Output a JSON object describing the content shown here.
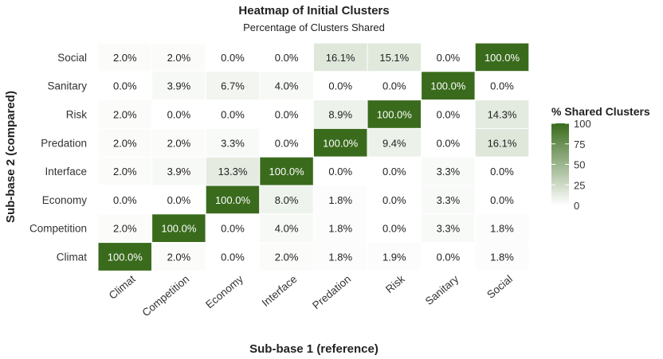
{
  "chart_data": {
    "type": "heatmap",
    "title": "Heatmap of Initial Clusters",
    "subtitle": "Percentage of Clusters Shared",
    "xlabel": "Sub-base 1 (reference)",
    "ylabel": "Sub-base 2 (compared)",
    "x_categories": [
      "Climat",
      "Competition",
      "Economy",
      "Interface",
      "Predation",
      "Risk",
      "Sanitary",
      "Social"
    ],
    "y_categories_top_to_bottom": [
      "Social",
      "Sanitary",
      "Risk",
      "Predation",
      "Interface",
      "Economy",
      "Competition",
      "Climat"
    ],
    "values_top_to_bottom": [
      [
        2.0,
        2.0,
        0.0,
        0.0,
        16.1,
        15.1,
        0.0,
        100.0
      ],
      [
        0.0,
        3.9,
        6.7,
        4.0,
        0.0,
        0.0,
        100.0,
        0.0
      ],
      [
        2.0,
        0.0,
        0.0,
        0.0,
        8.9,
        100.0,
        0.0,
        14.3
      ],
      [
        2.0,
        2.0,
        3.3,
        0.0,
        100.0,
        9.4,
        0.0,
        16.1
      ],
      [
        2.0,
        3.9,
        13.3,
        100.0,
        0.0,
        0.0,
        3.3,
        0.0
      ],
      [
        0.0,
        0.0,
        100.0,
        8.0,
        1.8,
        0.0,
        3.3,
        0.0
      ],
      [
        2.0,
        100.0,
        0.0,
        4.0,
        1.8,
        0.0,
        3.3,
        1.8
      ],
      [
        100.0,
        2.0,
        0.0,
        2.0,
        1.8,
        1.9,
        0.0,
        1.8
      ]
    ],
    "value_suffix": "%",
    "color_range": [
      0,
      100
    ],
    "colors": {
      "low": "#ffffff",
      "high": "#3a6b1d"
    },
    "legend": {
      "title": "% Shared Clusters",
      "ticks": [
        100,
        75,
        50,
        25,
        0
      ],
      "placement": "right"
    }
  }
}
